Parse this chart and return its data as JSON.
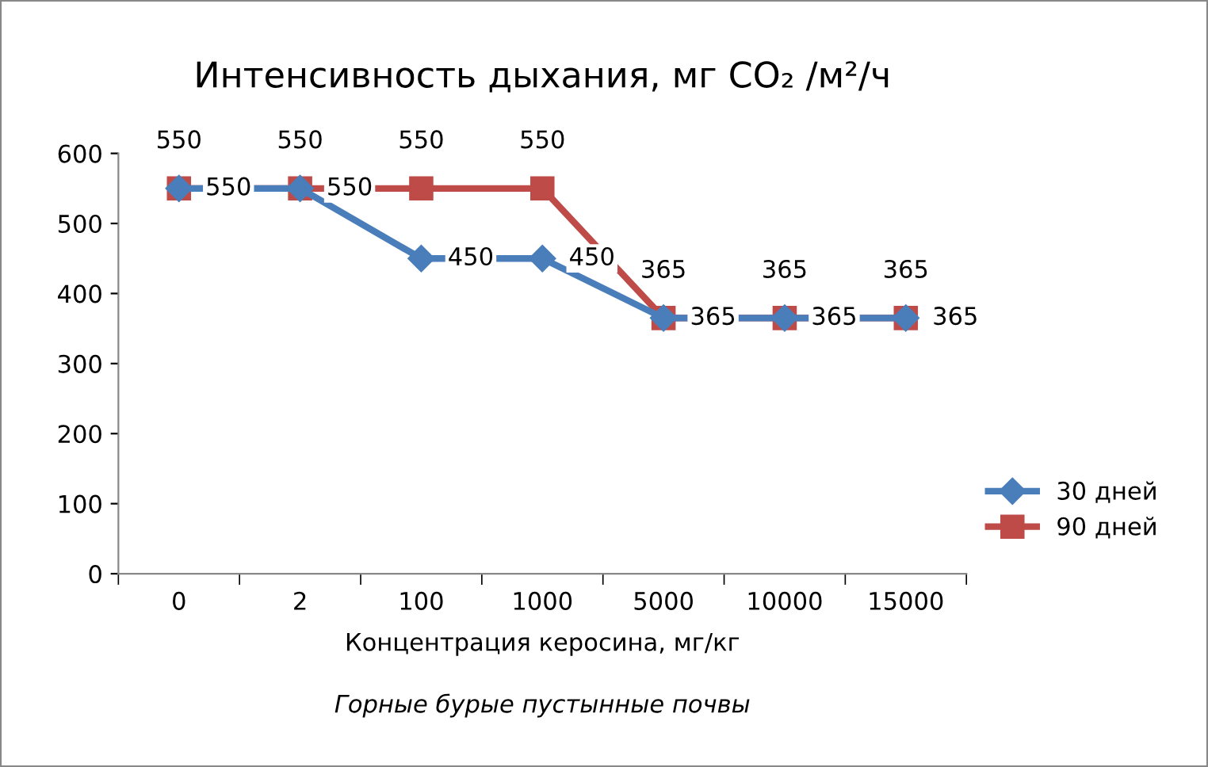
{
  "chart_data": {
    "type": "line",
    "title": "Интенсивность дыхания, мг CO₂ /м²/ч",
    "xlabel": "Концентрация керосина, мг/кг",
    "annotations": [
      "Горные бурые пустынные почвы"
    ],
    "categories": [
      "0",
      "2",
      "100",
      "1000",
      "5000",
      "10000",
      "15000"
    ],
    "series": [
      {
        "name": "30 дней",
        "color": "#4a7ebb",
        "marker": "diamond",
        "values": [
          550,
          550,
          450,
          450,
          365,
          365,
          365
        ]
      },
      {
        "name": "90 дней",
        "color": "#be4b48",
        "marker": "square",
        "values": [
          550,
          550,
          550,
          550,
          365,
          365,
          365
        ]
      }
    ],
    "ylim": [
      0,
      600
    ],
    "yticks": [
      0,
      100,
      200,
      300,
      400,
      500,
      600
    ],
    "grid": false,
    "legend": "right",
    "data_labels": true,
    "line_style": "solid"
  }
}
